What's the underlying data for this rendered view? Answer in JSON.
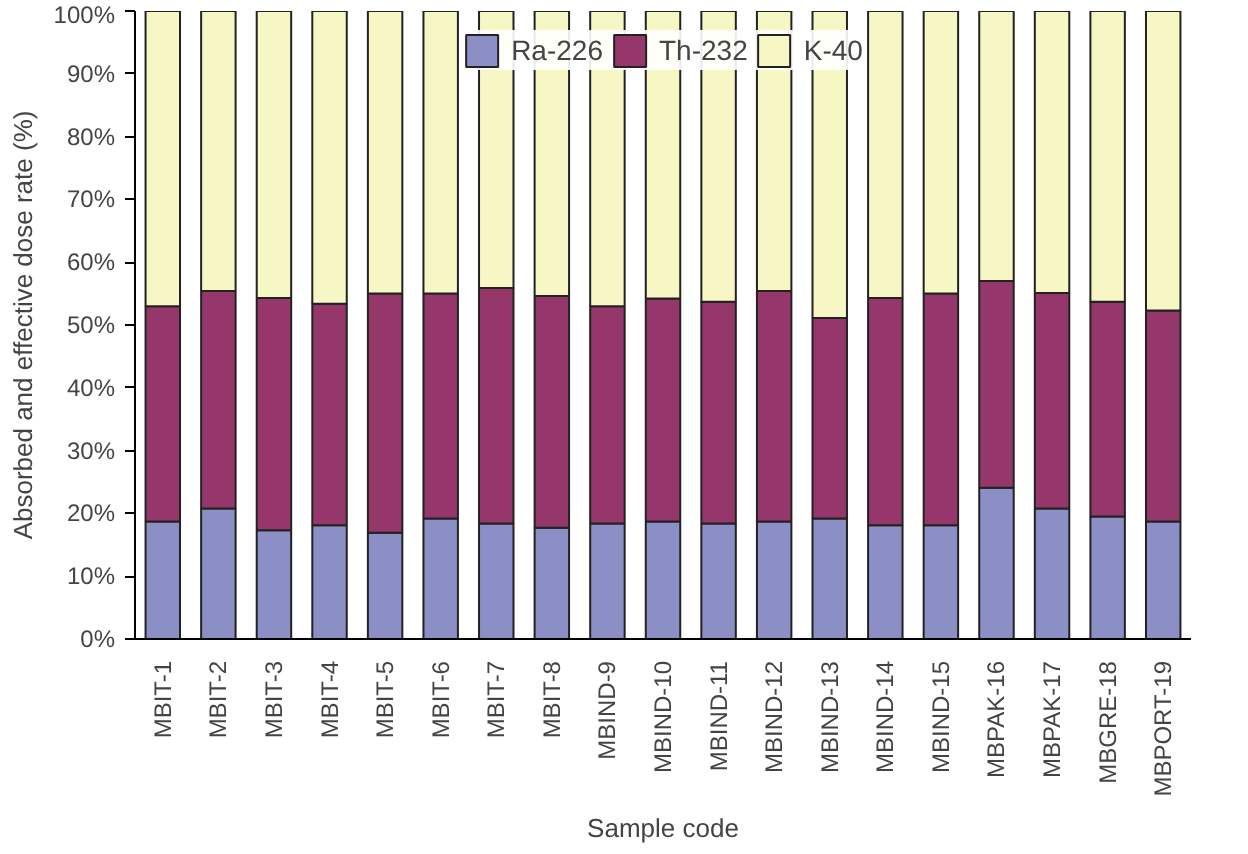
{
  "chart_data": {
    "type": "bar",
    "stacked": true,
    "xlabel": "Sample code",
    "ylabel": "Absorbed and effective dose rate (%)",
    "categories": [
      "MBIT-1",
      "MBIT-2",
      "MBIT-3",
      "MBIT-4",
      "MBIT-5",
      "MBIT-6",
      "MBIT-7",
      "MBIT-8",
      "MBIND-9",
      "MBIND-10",
      "MBIND-11",
      "MBIND-12",
      "MBIND-13",
      "MBIND-14",
      "MBIND-15",
      "MBPAK-16",
      "MBPAK-17",
      "MBGRE-18",
      "MBPORT-19"
    ],
    "series": [
      {
        "name": "Ra-226",
        "color": "#8b8fc6",
        "values": [
          18.7,
          20.8,
          17.3,
          18.1,
          16.9,
          19.2,
          18.4,
          17.7,
          18.4,
          18.7,
          18.4,
          18.7,
          19.2,
          18.1,
          18.1,
          24.1,
          20.8,
          19.5,
          18.7
        ]
      },
      {
        "name": "Th-232",
        "color": "#95376b",
        "values": [
          34.3,
          34.6,
          37.0,
          35.3,
          38.1,
          35.8,
          37.5,
          36.9,
          34.6,
          35.5,
          35.3,
          36.7,
          31.9,
          36.2,
          36.9,
          32.9,
          34.3,
          34.2,
          33.6
        ]
      },
      {
        "name": "K-40",
        "color": "#f7f7c6",
        "values": [
          47.0,
          44.6,
          45.7,
          46.6,
          45.0,
          45.0,
          44.1,
          45.4,
          47.0,
          45.8,
          46.3,
          44.6,
          48.9,
          45.7,
          45.0,
          43.0,
          44.9,
          46.3,
          47.7
        ]
      }
    ],
    "ylim": [
      0,
      100
    ],
    "yticks": [
      {
        "value": 0,
        "label": "0%"
      },
      {
        "value": 10,
        "label": "10%"
      },
      {
        "value": 20,
        "label": "20%"
      },
      {
        "value": 30,
        "label": "30%"
      },
      {
        "value": 40,
        "label": "40%"
      },
      {
        "value": 50,
        "label": "50%"
      },
      {
        "value": 60,
        "label": "60%"
      },
      {
        "value": 70,
        "label": "70%"
      },
      {
        "value": 80,
        "label": "80%"
      },
      {
        "value": 90,
        "label": "90%"
      },
      {
        "value": 100,
        "label": "100%"
      }
    ],
    "grid": false,
    "legend": "top"
  }
}
